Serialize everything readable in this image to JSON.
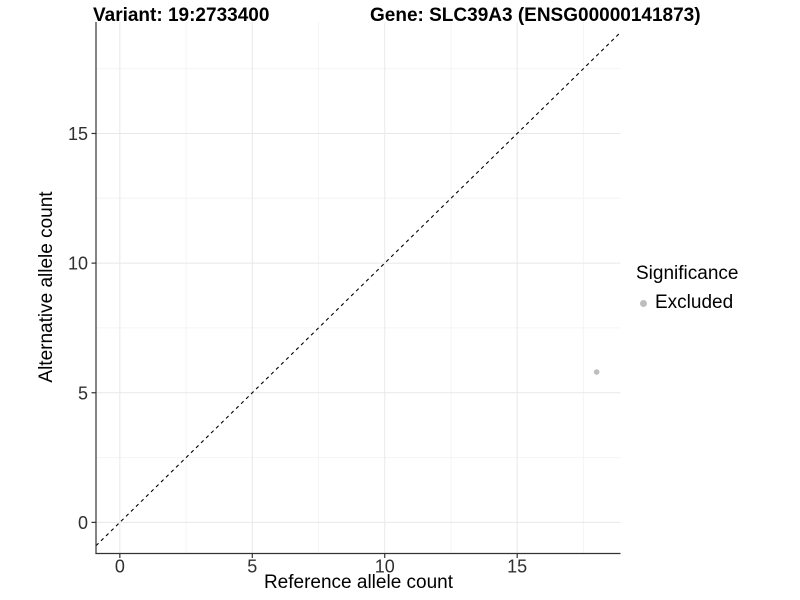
{
  "titles": {
    "variant": "Variant: 19:2733400",
    "gene": "Gene: SLC39A3 (ENSG00000141873)"
  },
  "legend": {
    "title": "Significance",
    "items": [
      {
        "label": "Excluded",
        "color": "#bebebe"
      }
    ]
  },
  "chart_data": {
    "type": "scatter",
    "title": "Variant: 19:2733400 | Gene: SLC39A3 (ENSG00000141873)",
    "xlabel": "Reference allele count",
    "ylabel": "Alternative allele count",
    "xlim": [
      -0.9,
      18.9
    ],
    "ylim": [
      -1.2,
      19.3
    ],
    "x_major_ticks": [
      0,
      5,
      10,
      15
    ],
    "x_minor_ticks": [
      2.5,
      7.5,
      12.5,
      17.5
    ],
    "y_major_ticks": [
      0,
      5,
      10,
      15
    ],
    "y_minor_ticks": [
      2.5,
      7.5,
      12.5,
      17.5
    ],
    "grid": "major+minor",
    "legend_position": "right",
    "series": [
      {
        "name": "Excluded",
        "color": "#bebebe",
        "points": [
          {
            "x": 18,
            "y": 5.8
          }
        ]
      }
    ],
    "reference_line": {
      "type": "identity y=x",
      "style": "dashed",
      "color": "#000000"
    }
  },
  "style_colors": {
    "background": "#ffffff",
    "axis_line": "#333333",
    "tick_text": "#303030",
    "grid_major": "#e8e8e8",
    "grid_minor": "#f4f4f4",
    "point": "#bebebe",
    "dashed_line": "#000000"
  }
}
